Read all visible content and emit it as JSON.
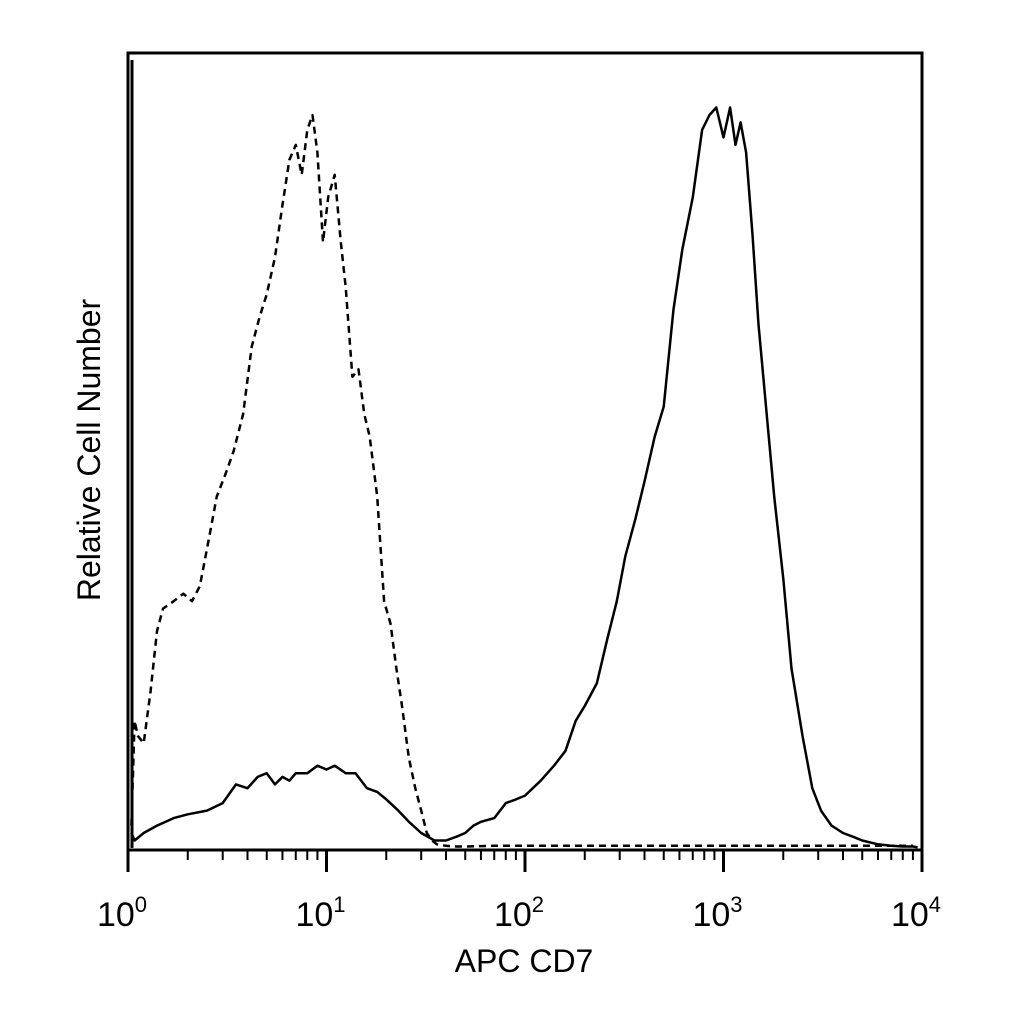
{
  "chart_data": {
    "type": "area",
    "title": "",
    "xlabel": "APC CD7",
    "ylabel": "Relative Cell Number",
    "x_scale": "log10",
    "xlim": [
      1,
      10000
    ],
    "ylim": [
      0,
      1
    ],
    "x_ticks": [
      {
        "value": 1,
        "base": "10",
        "exp": "0"
      },
      {
        "value": 10,
        "base": "10",
        "exp": "1"
      },
      {
        "value": 100,
        "base": "10",
        "exp": "2"
      },
      {
        "value": 1000,
        "base": "10",
        "exp": "3"
      },
      {
        "value": 10000,
        "base": "10",
        "exp": "4"
      }
    ],
    "grid": false,
    "series": [
      {
        "style": "dashed",
        "color": "#000000",
        "x": [
          1.04,
          1.08,
          1.12,
          1.2,
          1.3,
          1.4,
          1.5,
          1.7,
          1.9,
          2.1,
          2.3,
          2.5,
          2.8,
          3.1,
          3.4,
          3.8,
          4.2,
          4.6,
          5.0,
          5.5,
          6.0,
          6.5,
          7.0,
          7.5,
          8.0,
          8.5,
          9.0,
          9.6,
          10.2,
          11.0,
          11.8,
          12.5,
          13.5,
          14.5,
          15.5,
          16.5,
          18.0,
          19.5,
          21.0,
          22.5,
          24.0,
          26.0,
          28.0,
          30.0,
          32.0,
          34.0,
          36.0,
          40.0,
          45.0,
          50.0,
          70.0,
          100.0,
          200.0,
          500.0,
          1000.0,
          3000.0,
          9000.0
        ],
        "y": [
          0.03,
          0.17,
          0.15,
          0.14,
          0.21,
          0.29,
          0.32,
          0.33,
          0.34,
          0.33,
          0.35,
          0.4,
          0.47,
          0.5,
          0.53,
          0.58,
          0.67,
          0.71,
          0.74,
          0.79,
          0.86,
          0.92,
          0.94,
          0.9,
          0.96,
          0.98,
          0.93,
          0.81,
          0.87,
          0.9,
          0.81,
          0.75,
          0.63,
          0.64,
          0.58,
          0.55,
          0.47,
          0.33,
          0.3,
          0.24,
          0.19,
          0.12,
          0.08,
          0.05,
          0.02,
          0.01,
          0.005,
          0.003,
          0.002,
          0.002,
          0.003,
          0.003,
          0.003,
          0.003,
          0.003,
          0.003,
          0.003
        ]
      },
      {
        "style": "solid",
        "color": "#000000",
        "x": [
          1.04,
          1.08,
          1.2,
          1.4,
          1.7,
          2.0,
          2.5,
          3.0,
          3.5,
          4.0,
          4.5,
          5.0,
          5.5,
          6.0,
          6.5,
          7.0,
          8.0,
          9.0,
          10.0,
          11.0,
          12.5,
          14.0,
          16.0,
          18.0,
          20.0,
          23.0,
          26.0,
          30.0,
          35.0,
          40.0,
          45.0,
          50.0,
          55.0,
          60.0,
          70.0,
          80.0,
          90.0,
          100.0,
          120.0,
          140.0,
          160.0,
          180.0,
          200.0,
          230.0,
          260.0,
          290.0,
          320.0,
          360.0,
          400.0,
          450.0,
          500.0,
          560.0,
          620.0,
          700.0,
          780.0,
          850.0,
          920.0,
          1000.0,
          1080.0,
          1150.0,
          1220.0,
          1300.0,
          1400.0,
          1500.0,
          1650.0,
          1800.0,
          2000.0,
          2200.0,
          2500.0,
          2800.0,
          3100.0,
          3500.0,
          4000.0,
          4500.0,
          5000.0,
          6000.0,
          7000.0,
          8000.0,
          9000.0,
          9500.0
        ],
        "y": [
          0.02,
          0.01,
          0.02,
          0.03,
          0.04,
          0.045,
          0.05,
          0.06,
          0.085,
          0.08,
          0.095,
          0.1,
          0.085,
          0.095,
          0.09,
          0.1,
          0.1,
          0.11,
          0.105,
          0.11,
          0.1,
          0.1,
          0.08,
          0.075,
          0.065,
          0.05,
          0.035,
          0.02,
          0.01,
          0.01,
          0.015,
          0.02,
          0.03,
          0.035,
          0.04,
          0.06,
          0.065,
          0.07,
          0.09,
          0.11,
          0.13,
          0.17,
          0.19,
          0.22,
          0.28,
          0.33,
          0.39,
          0.44,
          0.49,
          0.55,
          0.59,
          0.72,
          0.8,
          0.87,
          0.96,
          0.98,
          0.99,
          0.95,
          0.99,
          0.94,
          0.97,
          0.93,
          0.82,
          0.7,
          0.58,
          0.47,
          0.36,
          0.24,
          0.15,
          0.08,
          0.05,
          0.03,
          0.02,
          0.015,
          0.01,
          0.005,
          0.003,
          0.002,
          0.002,
          0.001
        ]
      }
    ]
  }
}
